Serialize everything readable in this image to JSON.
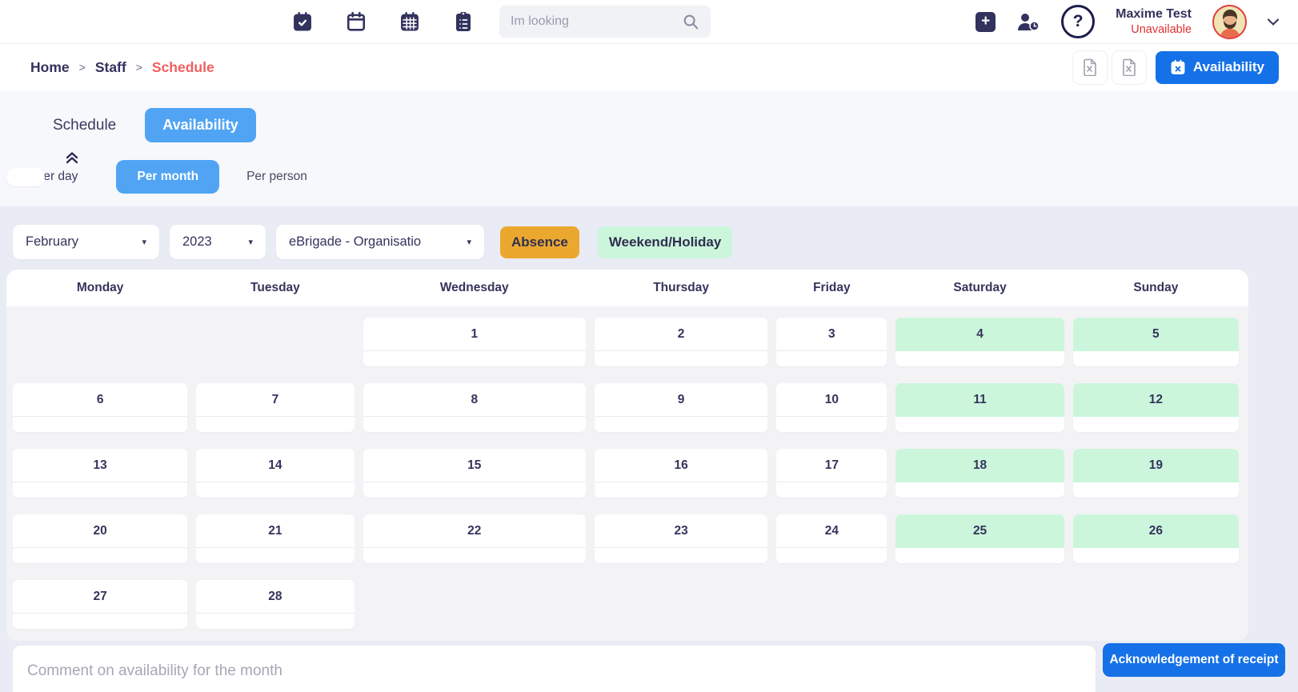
{
  "navbar": {
    "icons": {
      "calendar_check": "calendar-check",
      "calendar_blank": "calendar",
      "calendar_month": "calendar-grid",
      "clipboard_list": "clipboard-list"
    },
    "search": {
      "placeholder": "Im looking"
    },
    "user": {
      "name": "Maxime Test",
      "status": "Unavailable"
    }
  },
  "breadcrumb": {
    "home": "Home",
    "staff": "Staff",
    "current": "Schedule",
    "separator": ">"
  },
  "header_actions": {
    "availability_label": "Availability"
  },
  "tabs": {
    "schedule": "Schedule",
    "availability": "Availability"
  },
  "view_modes": {
    "per_day": "Per day",
    "per_month": "Per month",
    "per_person": "Per person"
  },
  "filters": {
    "month": "February",
    "year": "2023",
    "organisation": "eBrigade - Organisatio",
    "caret": "▾",
    "legend_absence": "Absence",
    "legend_weekend": "Weekend/Holiday"
  },
  "calendar": {
    "day_headers": [
      "Monday",
      "Tuesday",
      "Wednesday",
      "Thursday",
      "Friday",
      "Saturday",
      "Sunday"
    ],
    "weeks": [
      [
        null,
        null,
        {
          "day": 1
        },
        {
          "day": 2
        },
        {
          "day": 3
        },
        {
          "day": 4,
          "weekend": true
        },
        {
          "day": 5,
          "weekend": true
        }
      ],
      [
        {
          "day": 6
        },
        {
          "day": 7
        },
        {
          "day": 8
        },
        {
          "day": 9
        },
        {
          "day": 10
        },
        {
          "day": 11,
          "weekend": true
        },
        {
          "day": 12,
          "weekend": true
        }
      ],
      [
        {
          "day": 13
        },
        {
          "day": 14
        },
        {
          "day": 15
        },
        {
          "day": 16
        },
        {
          "day": 17
        },
        {
          "day": 18,
          "weekend": true
        },
        {
          "day": 19,
          "weekend": true
        }
      ],
      [
        {
          "day": 20
        },
        {
          "day": 21
        },
        {
          "day": 22
        },
        {
          "day": 23
        },
        {
          "day": 24
        },
        {
          "day": 25,
          "weekend": true
        },
        {
          "day": 26,
          "weekend": true
        }
      ],
      [
        {
          "day": 27
        },
        {
          "day": 28
        },
        null,
        null,
        null,
        null,
        null
      ]
    ]
  },
  "footer": {
    "comment_placeholder": "Comment on availability for the month",
    "ack_button": "Acknowledgement of receipt"
  },
  "colors": {
    "accent_blue_dark": "#1571e8",
    "accent_blue_light": "#51a4f3",
    "absence_orange": "#eba82f",
    "weekend_green": "#ccf6dc",
    "status_red": "#e02f2f",
    "crumb_red": "#f15f5f",
    "navy": "#32325d"
  }
}
